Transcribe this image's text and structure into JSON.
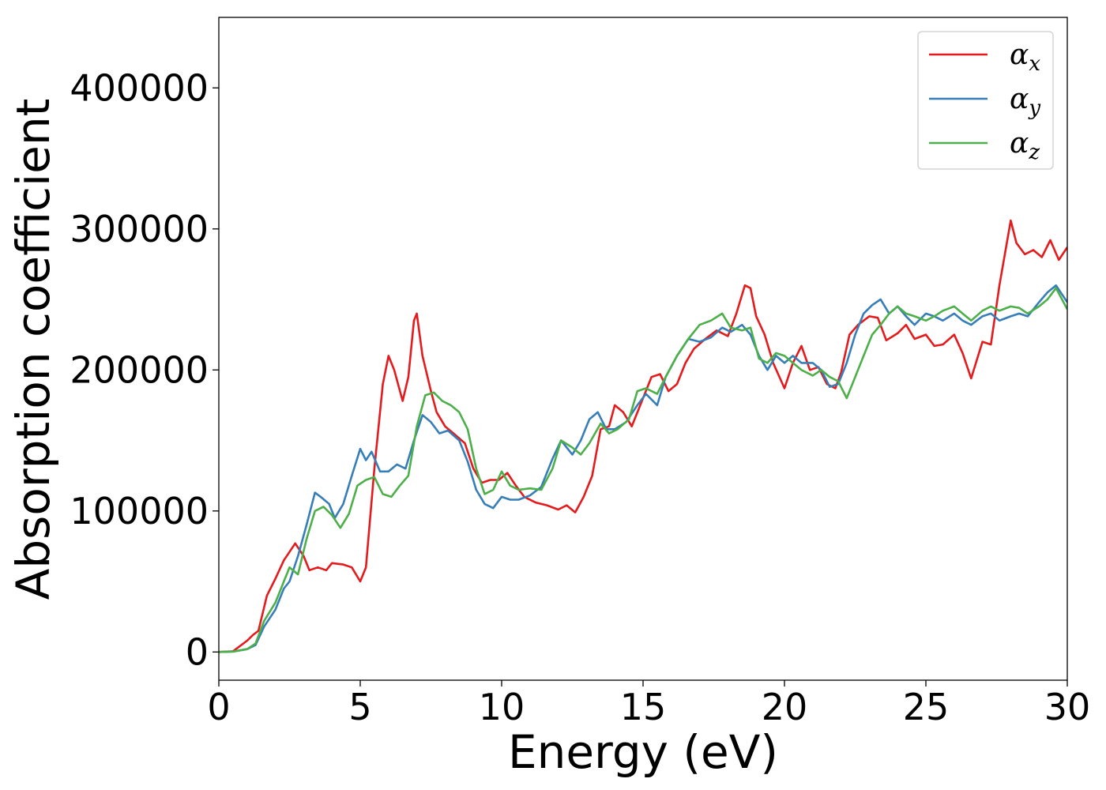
{
  "chart_data": {
    "type": "line",
    "xlabel": "Energy (eV)",
    "ylabel": "Absorption coefficient",
    "xlim": [
      0,
      30
    ],
    "ylim": [
      -20000,
      450000
    ],
    "xticks": [
      0,
      5,
      10,
      15,
      20,
      25,
      30
    ],
    "xtick_labels": [
      "0",
      "5",
      "10",
      "15",
      "20",
      "25",
      "30"
    ],
    "yticks": [
      0,
      100000,
      200000,
      300000,
      400000
    ],
    "ytick_labels": [
      "0",
      "100000",
      "200000",
      "300000",
      "400000"
    ],
    "grid": false,
    "legend_position": "top-right",
    "series": [
      {
        "name": "α_x",
        "label_main": "α",
        "label_sub": "x",
        "color": "#e41a1c",
        "x": [
          0,
          0.5,
          1.0,
          1.2,
          1.4,
          1.7,
          2.0,
          2.3,
          2.7,
          3.0,
          3.2,
          3.5,
          3.8,
          4.0,
          4.4,
          4.7,
          5.0,
          5.2,
          5.5,
          5.8,
          6.0,
          6.2,
          6.5,
          6.7,
          6.9,
          7.0,
          7.2,
          7.5,
          7.7,
          8.0,
          8.3,
          8.7,
          9.0,
          9.3,
          9.6,
          9.9,
          10.2,
          10.5,
          10.8,
          11.2,
          11.6,
          12.0,
          12.3,
          12.6,
          12.9,
          13.2,
          13.5,
          13.8,
          14.0,
          14.3,
          14.6,
          15.0,
          15.3,
          15.6,
          15.9,
          16.2,
          16.5,
          16.8,
          17.2,
          17.6,
          18.0,
          18.3,
          18.6,
          18.8,
          19.0,
          19.3,
          19.6,
          20.0,
          20.3,
          20.6,
          20.9,
          21.2,
          21.5,
          21.8,
          22.0,
          22.3,
          22.6,
          23.0,
          23.3,
          23.6,
          24.0,
          24.3,
          24.6,
          25.0,
          25.3,
          25.6,
          26.0,
          26.3,
          26.6,
          27.0,
          27.3,
          27.6,
          28.0,
          28.2,
          28.5,
          28.8,
          29.1,
          29.4,
          29.7,
          30.0
        ],
        "y": [
          0,
          500,
          8000,
          12000,
          15000,
          40000,
          52000,
          65000,
          77000,
          68000,
          58000,
          60000,
          58000,
          63000,
          62000,
          60000,
          50000,
          60000,
          130000,
          190000,
          210000,
          200000,
          178000,
          195000,
          235000,
          240000,
          210000,
          185000,
          170000,
          160000,
          155000,
          148000,
          130000,
          120000,
          122000,
          122000,
          127000,
          118000,
          110000,
          106000,
          104000,
          101000,
          104000,
          99000,
          110000,
          125000,
          158000,
          160000,
          175000,
          170000,
          160000,
          180000,
          195000,
          197000,
          185000,
          190000,
          205000,
          215000,
          222000,
          228000,
          224000,
          240000,
          260000,
          258000,
          238000,
          225000,
          205000,
          187000,
          205000,
          217000,
          200000,
          202000,
          190000,
          187000,
          198000,
          225000,
          232000,
          238000,
          237000,
          221000,
          226000,
          232000,
          222000,
          225000,
          217000,
          218000,
          225000,
          212000,
          194000,
          220000,
          218000,
          260000,
          306000,
          290000,
          282000,
          285000,
          280000,
          292000,
          278000,
          287000
        ]
      },
      {
        "name": "α_y",
        "label_main": "α",
        "label_sub": "y",
        "color": "#377eb8",
        "x": [
          0,
          0.5,
          1.0,
          1.3,
          1.6,
          2.0,
          2.3,
          2.5,
          2.8,
          3.1,
          3.4,
          3.6,
          3.9,
          4.1,
          4.4,
          4.7,
          5.0,
          5.2,
          5.4,
          5.7,
          6.0,
          6.3,
          6.6,
          6.9,
          7.2,
          7.5,
          7.8,
          8.1,
          8.5,
          8.8,
          9.1,
          9.4,
          9.7,
          10.0,
          10.3,
          10.6,
          11.0,
          11.4,
          11.8,
          12.1,
          12.5,
          12.8,
          13.1,
          13.4,
          13.7,
          14.0,
          14.4,
          14.8,
          15.1,
          15.5,
          15.8,
          16.2,
          16.6,
          17.0,
          17.4,
          17.8,
          18.1,
          18.5,
          18.8,
          19.1,
          19.4,
          19.7,
          20.0,
          20.3,
          20.6,
          21.0,
          21.3,
          21.6,
          21.9,
          22.2,
          22.5,
          22.8,
          23.1,
          23.4,
          23.7,
          24.0,
          24.3,
          24.6,
          25.0,
          25.3,
          25.6,
          26.0,
          26.3,
          26.6,
          27.0,
          27.3,
          27.6,
          28.0,
          28.3,
          28.6,
          29.0,
          29.3,
          29.6,
          30.0
        ],
        "y": [
          0,
          300,
          2000,
          5000,
          18000,
          30000,
          45000,
          50000,
          68000,
          90000,
          113000,
          110000,
          105000,
          95000,
          105000,
          125000,
          144000,
          136000,
          142000,
          128000,
          128000,
          133000,
          130000,
          150000,
          168000,
          163000,
          155000,
          157000,
          150000,
          135000,
          115000,
          105000,
          102000,
          110000,
          108000,
          108000,
          111000,
          117000,
          137000,
          150000,
          140000,
          150000,
          165000,
          170000,
          158000,
          158000,
          163000,
          175000,
          183000,
          175000,
          195000,
          210000,
          222000,
          220000,
          223000,
          230000,
          227000,
          232000,
          225000,
          210000,
          200000,
          210000,
          205000,
          210000,
          205000,
          205000,
          200000,
          188000,
          190000,
          205000,
          225000,
          240000,
          246000,
          250000,
          240000,
          245000,
          238000,
          232000,
          240000,
          238000,
          235000,
          240000,
          235000,
          232000,
          238000,
          240000,
          235000,
          238000,
          240000,
          238000,
          248000,
          255000,
          260000,
          248000
        ]
      },
      {
        "name": "α_z",
        "label_main": "α",
        "label_sub": "z",
        "color": "#4daf4a",
        "x": [
          0,
          0.5,
          1.0,
          1.3,
          1.6,
          2.0,
          2.3,
          2.5,
          2.8,
          3.1,
          3.4,
          3.7,
          4.0,
          4.3,
          4.6,
          4.9,
          5.2,
          5.5,
          5.8,
          6.1,
          6.4,
          6.7,
          7.0,
          7.3,
          7.6,
          7.9,
          8.2,
          8.5,
          8.8,
          9.1,
          9.4,
          9.7,
          10.0,
          10.3,
          10.6,
          11.0,
          11.4,
          11.8,
          12.1,
          12.5,
          12.8,
          13.1,
          13.5,
          13.8,
          14.1,
          14.5,
          14.8,
          15.1,
          15.5,
          15.8,
          16.2,
          16.6,
          17.0,
          17.4,
          17.8,
          18.1,
          18.5,
          18.8,
          19.1,
          19.4,
          19.7,
          20.0,
          20.3,
          20.6,
          21.0,
          21.3,
          21.6,
          21.9,
          22.2,
          22.5,
          22.8,
          23.1,
          23.4,
          23.7,
          24.0,
          24.3,
          24.6,
          25.0,
          25.3,
          25.6,
          26.0,
          26.3,
          26.6,
          27.0,
          27.3,
          27.6,
          28.0,
          28.3,
          28.6,
          29.0,
          29.3,
          29.6,
          30.0
        ],
        "y": [
          0,
          300,
          2000,
          6000,
          22000,
          35000,
          50000,
          60000,
          55000,
          80000,
          100000,
          103000,
          97000,
          88000,
          98000,
          118000,
          122000,
          124000,
          112000,
          110000,
          118000,
          125000,
          160000,
          182000,
          184000,
          178000,
          175000,
          170000,
          158000,
          130000,
          112000,
          115000,
          128000,
          118000,
          115000,
          116000,
          115000,
          130000,
          150000,
          145000,
          140000,
          148000,
          162000,
          155000,
          158000,
          165000,
          185000,
          187000,
          183000,
          195000,
          210000,
          222000,
          232000,
          235000,
          240000,
          230000,
          228000,
          230000,
          208000,
          205000,
          212000,
          210000,
          205000,
          200000,
          196000,
          200000,
          195000,
          192000,
          180000,
          195000,
          210000,
          225000,
          232000,
          240000,
          245000,
          240000,
          238000,
          235000,
          238000,
          242000,
          245000,
          240000,
          235000,
          242000,
          245000,
          242000,
          245000,
          244000,
          240000,
          245000,
          250000,
          258000,
          243000
        ]
      }
    ]
  }
}
